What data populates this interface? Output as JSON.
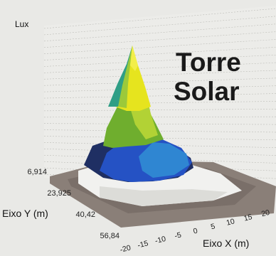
{
  "chart_data": {
    "type": "surface3d",
    "title_line1": "Torre",
    "title_line2": "Solar",
    "zlabel": "Lux",
    "xlabel": "Eixo X (m)",
    "ylabel": "Eixo Y (m)",
    "x_ticks": [
      "-20",
      "-15",
      "-10",
      "-5",
      "0",
      "5",
      "10",
      "15",
      "20"
    ],
    "y_ticks": [
      "6,914",
      "23,925",
      "40,42",
      "56,84"
    ],
    "grid": true,
    "colors": {
      "background": "#e9e9e6",
      "grid": "#bdbdb8",
      "floor": "#8a7f78",
      "plateau": "#f1f1ef",
      "dark_blue": "#1f2f63",
      "blue": "#2552c4",
      "light_blue": "#2f86d2",
      "green": "#6fae2e",
      "lime": "#b2d235",
      "yellow": "#e6e41e"
    }
  }
}
